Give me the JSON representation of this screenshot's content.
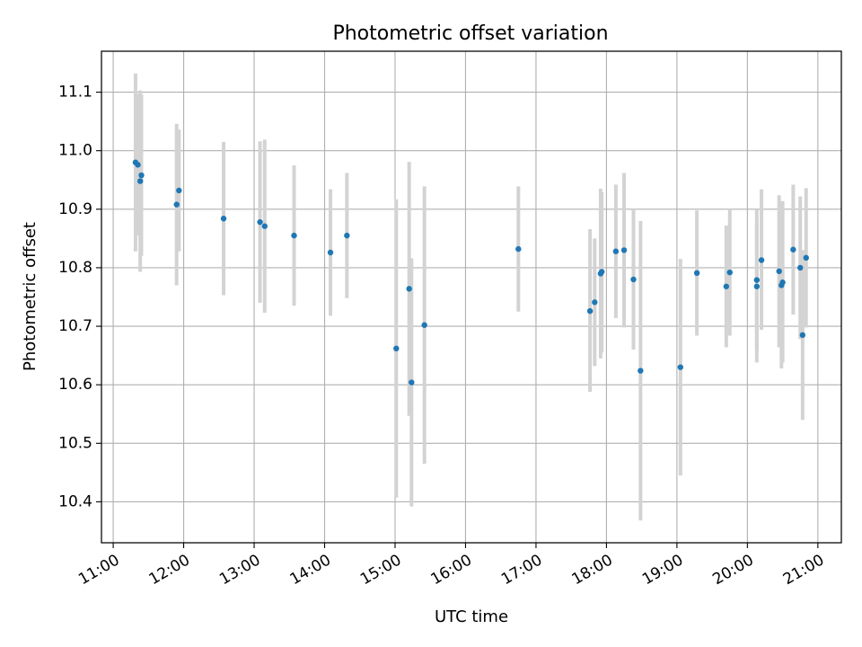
{
  "chart_data": {
    "type": "scatter",
    "title": "Photometric offset variation",
    "xlabel": "UTC time",
    "ylabel": "Photometric offset",
    "xlim": [
      "10:50",
      "21:20"
    ],
    "ylim": [
      10.33,
      11.17
    ],
    "grid": true,
    "legend": "none",
    "x_ticks": [
      "11:00",
      "12:00",
      "13:00",
      "14:00",
      "15:00",
      "16:00",
      "17:00",
      "18:00",
      "19:00",
      "20:00",
      "21:00"
    ],
    "y_ticks": [
      "10.4",
      "10.5",
      "10.6",
      "10.7",
      "10.8",
      "10.9",
      "11.0",
      "11.1"
    ],
    "colors": {
      "point": "#1f77b4",
      "errorbar": "#d3d3d3",
      "grid": "#b0b0b0"
    },
    "points": [
      {
        "x": "11:19",
        "y": 10.98,
        "err_low": 10.828,
        "err_high": 11.132
      },
      {
        "x": "11:21",
        "y": 10.976,
        "err_low": 10.855,
        "err_high": 11.097
      },
      {
        "x": "11:23",
        "y": 10.948,
        "err_low": 10.793,
        "err_high": 11.103
      },
      {
        "x": "11:24",
        "y": 10.958,
        "err_low": 10.82,
        "err_high": 11.096
      },
      {
        "x": "11:54",
        "y": 10.908,
        "err_low": 10.77,
        "err_high": 11.046
      },
      {
        "x": "11:56",
        "y": 10.932,
        "err_low": 10.828,
        "err_high": 11.036
      },
      {
        "x": "12:34",
        "y": 10.884,
        "err_low": 10.753,
        "err_high": 11.015
      },
      {
        "x": "13:05",
        "y": 10.878,
        "err_low": 10.74,
        "err_high": 11.016
      },
      {
        "x": "13:09",
        "y": 10.871,
        "err_low": 10.723,
        "err_high": 11.019
      },
      {
        "x": "13:34",
        "y": 10.855,
        "err_low": 10.735,
        "err_high": 10.975
      },
      {
        "x": "14:05",
        "y": 10.826,
        "err_low": 10.718,
        "err_high": 10.934
      },
      {
        "x": "14:19",
        "y": 10.855,
        "err_low": 10.748,
        "err_high": 10.962
      },
      {
        "x": "15:01",
        "y": 10.662,
        "err_low": 10.407,
        "err_high": 10.917
      },
      {
        "x": "15:12",
        "y": 10.764,
        "err_low": 10.547,
        "err_high": 10.981
      },
      {
        "x": "15:14",
        "y": 10.604,
        "err_low": 10.392,
        "err_high": 10.816
      },
      {
        "x": "15:25",
        "y": 10.702,
        "err_low": 10.465,
        "err_high": 10.939
      },
      {
        "x": "16:45",
        "y": 10.832,
        "err_low": 10.725,
        "err_high": 10.939
      },
      {
        "x": "17:46",
        "y": 10.726,
        "err_low": 10.588,
        "err_high": 10.866
      },
      {
        "x": "17:50",
        "y": 10.741,
        "err_low": 10.632,
        "err_high": 10.85
      },
      {
        "x": "17:55",
        "y": 10.79,
        "err_low": 10.645,
        "err_high": 10.935
      },
      {
        "x": "17:56",
        "y": 10.793,
        "err_low": 10.655,
        "err_high": 10.929
      },
      {
        "x": "18:08",
        "y": 10.828,
        "err_low": 10.714,
        "err_high": 10.942
      },
      {
        "x": "18:15",
        "y": 10.83,
        "err_low": 10.698,
        "err_high": 10.962
      },
      {
        "x": "18:23",
        "y": 10.78,
        "err_low": 10.66,
        "err_high": 10.9
      },
      {
        "x": "18:29",
        "y": 10.624,
        "err_low": 10.368,
        "err_high": 10.88
      },
      {
        "x": "19:03",
        "y": 10.63,
        "err_low": 10.445,
        "err_high": 10.815
      },
      {
        "x": "19:17",
        "y": 10.791,
        "err_low": 10.684,
        "err_high": 10.898
      },
      {
        "x": "19:42",
        "y": 10.768,
        "err_low": 10.664,
        "err_high": 10.872
      },
      {
        "x": "19:45",
        "y": 10.792,
        "err_low": 10.684,
        "err_high": 10.9
      },
      {
        "x": "20:08",
        "y": 10.779,
        "err_low": 10.638,
        "err_high": 10.9
      },
      {
        "x": "20:08",
        "y": 10.768,
        "err_low": 10.66,
        "err_high": 10.876
      },
      {
        "x": "20:12",
        "y": 10.813,
        "err_low": 10.694,
        "err_high": 10.934
      },
      {
        "x": "20:27",
        "y": 10.794,
        "err_low": 10.664,
        "err_high": 10.924
      },
      {
        "x": "20:29",
        "y": 10.77,
        "err_low": 10.628,
        "err_high": 10.912
      },
      {
        "x": "20:30",
        "y": 10.775,
        "err_low": 10.638,
        "err_high": 10.914
      },
      {
        "x": "20:39",
        "y": 10.831,
        "err_low": 10.72,
        "err_high": 10.942
      },
      {
        "x": "20:45",
        "y": 10.8,
        "err_low": 10.678,
        "err_high": 10.922
      },
      {
        "x": "20:47",
        "y": 10.685,
        "err_low": 10.54,
        "err_high": 10.83
      },
      {
        "x": "20:50",
        "y": 10.817,
        "err_low": 10.698,
        "err_high": 10.936
      }
    ]
  }
}
